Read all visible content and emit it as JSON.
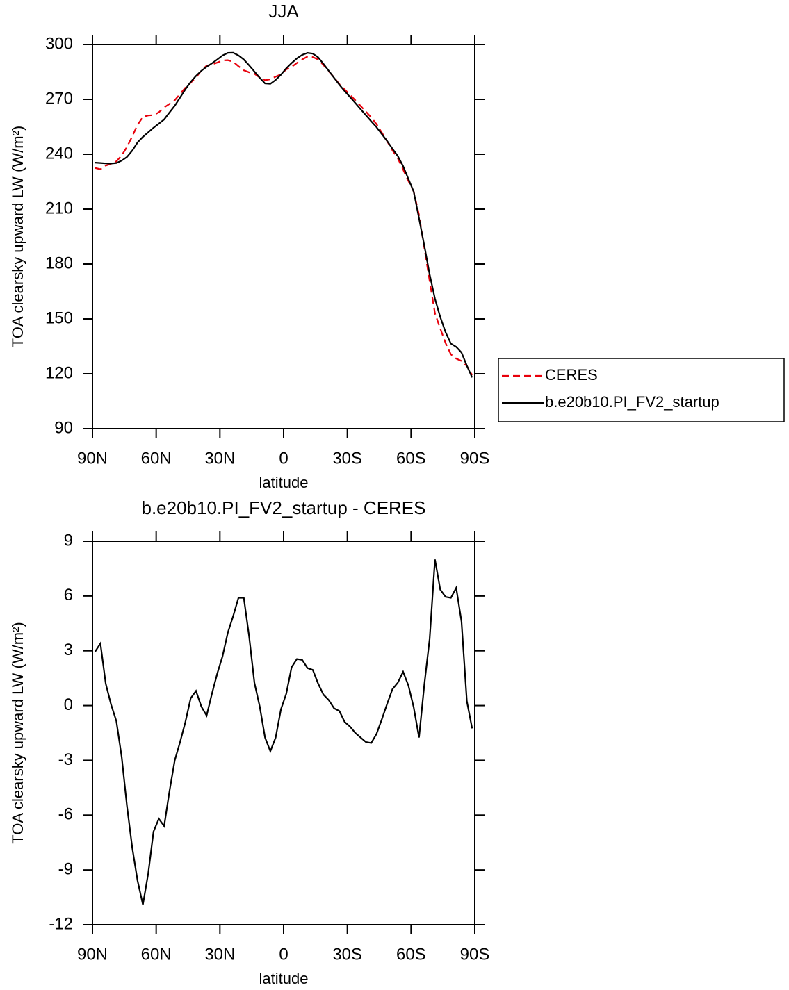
{
  "chart_data": [
    {
      "type": "line",
      "title": "JJA",
      "xlabel": "latitude",
      "ylabel": "TOA clearsky upward LW (W/m²)",
      "x": [
        88.75,
        86.25,
        83.75,
        81.25,
        78.75,
        76.25,
        73.75,
        71.25,
        68.75,
        66.25,
        63.75,
        61.25,
        58.75,
        56.25,
        53.75,
        51.25,
        48.75,
        46.25,
        43.75,
        41.25,
        38.75,
        36.25,
        33.75,
        31.25,
        28.75,
        26.25,
        23.75,
        21.25,
        18.75,
        16.25,
        13.75,
        11.25,
        8.75,
        6.25,
        3.75,
        1.25,
        -1.25,
        -3.75,
        -6.25,
        -8.75,
        -11.25,
        -13.75,
        -16.25,
        -18.75,
        -21.25,
        -23.75,
        -26.25,
        -28.75,
        -31.25,
        -33.75,
        -36.25,
        -38.75,
        -41.25,
        -43.75,
        -46.25,
        -48.75,
        -51.25,
        -53.75,
        -56.25,
        -58.75,
        -61.25,
        -63.75,
        -66.25,
        -68.75,
        -71.25,
        -73.75,
        -76.25,
        -78.75,
        -81.25,
        -83.75,
        -86.25,
        -88.75
      ],
      "series": [
        {
          "name": "CERES",
          "color": "#e8000b",
          "linestyle": "dashed",
          "values": [
            232.5,
            231.8,
            233.8,
            234.8,
            236.1,
            239.3,
            244.0,
            249.8,
            256.1,
            260.4,
            261.2,
            261.4,
            262.9,
            265.6,
            267.5,
            269.5,
            273.0,
            276.4,
            279.1,
            282.0,
            285.7,
            288.4,
            289.1,
            290.1,
            291.3,
            291.4,
            290.6,
            288.1,
            285.9,
            284.8,
            284.0,
            281.9,
            280.5,
            281.0,
            282.4,
            283.7,
            286.4,
            287.7,
            289.9,
            291.8,
            293.4,
            293.1,
            291.8,
            288.8,
            285.3,
            282.0,
            278.3,
            275.4,
            272.5,
            269.5,
            266.4,
            263.3,
            260.1,
            256.4,
            251.8,
            247.1,
            242.1,
            237.8,
            231.7,
            225.4,
            219.6,
            206.8,
            188.9,
            170.7,
            153.0,
            144.7,
            136.8,
            130.6,
            128.3,
            127.0,
            124.3,
            119.3
          ]
        },
        {
          "name": "b.e20b10.PI_FV2_startup",
          "color": "#000000",
          "linestyle": "solid",
          "values": [
            235.4,
            235.2,
            235.0,
            234.9,
            235.2,
            236.5,
            238.5,
            242.0,
            246.5,
            249.5,
            252.0,
            254.5,
            256.7,
            259.0,
            262.8,
            266.5,
            271.0,
            275.5,
            279.5,
            282.8,
            285.6,
            287.8,
            289.7,
            291.8,
            294.0,
            295.4,
            295.5,
            294.0,
            291.8,
            288.6,
            285.2,
            281.8,
            278.7,
            278.5,
            280.6,
            283.5,
            287.0,
            289.8,
            292.4,
            294.3,
            295.4,
            295.0,
            293.0,
            289.4,
            285.6,
            281.8,
            278.0,
            274.5,
            271.3,
            268.0,
            264.6,
            261.3,
            258.0,
            254.8,
            251.0,
            247.2,
            243.0,
            239.0,
            233.5,
            226.5,
            219.5,
            205.0,
            190.0,
            174.3,
            161.0,
            151.0,
            142.7,
            136.5,
            134.7,
            131.6,
            124.5,
            118.0
          ]
        }
      ],
      "xlim": [
        90,
        -90
      ],
      "xticks": [
        {
          "value": 90,
          "label": "90N"
        },
        {
          "value": 60,
          "label": "60N"
        },
        {
          "value": 30,
          "label": "30N"
        },
        0,
        {
          "value": -30,
          "label": "30S"
        },
        {
          "value": -60,
          "label": "60S"
        },
        {
          "value": -90,
          "label": "90S"
        }
      ],
      "ylim": [
        90,
        300
      ],
      "yticks": [
        90,
        120,
        150,
        180,
        210,
        240,
        270,
        300
      ],
      "legend": "right"
    },
    {
      "type": "line",
      "title": "b.e20b10.PI_FV2_startup - CERES",
      "xlabel": "latitude",
      "ylabel": "TOA clearsky upward LW (W/m²)",
      "x": [
        88.75,
        86.25,
        83.75,
        81.25,
        78.75,
        76.25,
        73.75,
        71.25,
        68.75,
        66.25,
        63.75,
        61.25,
        58.75,
        56.25,
        53.75,
        51.25,
        48.75,
        46.25,
        43.75,
        41.25,
        38.75,
        36.25,
        33.75,
        31.25,
        28.75,
        26.25,
        23.75,
        21.25,
        18.75,
        16.25,
        13.75,
        11.25,
        8.75,
        6.25,
        3.75,
        1.25,
        -1.25,
        -3.75,
        -6.25,
        -8.75,
        -11.25,
        -13.75,
        -16.25,
        -18.75,
        -21.25,
        -23.75,
        -26.25,
        -28.75,
        -31.25,
        -33.75,
        -36.25,
        -38.75,
        -41.25,
        -43.75,
        -46.25,
        -48.75,
        -51.25,
        -53.75,
        -56.25,
        -58.75,
        -61.25,
        -63.75,
        -66.25,
        -68.75,
        -71.25,
        -73.75,
        -76.25,
        -78.75,
        -81.25,
        -83.75,
        -86.25,
        -88.75
      ],
      "series": [
        {
          "color": "#000000",
          "linestyle": "solid",
          "values": [
            2.95,
            3.4,
            1.2,
            0.06,
            -0.85,
            -2.8,
            -5.5,
            -7.8,
            -9.6,
            -10.9,
            -9.2,
            -6.9,
            -6.2,
            -6.6,
            -4.7,
            -3.0,
            -2.0,
            -0.9,
            0.4,
            0.8,
            -0.05,
            -0.55,
            0.65,
            1.75,
            2.7,
            4.0,
            4.9,
            5.9,
            5.9,
            3.8,
            1.25,
            -0.05,
            -1.75,
            -2.5,
            -1.75,
            -0.2,
            0.65,
            2.1,
            2.55,
            2.5,
            2.05,
            1.95,
            1.2,
            0.6,
            0.3,
            -0.15,
            -0.3,
            -0.9,
            -1.15,
            -1.5,
            -1.75,
            -2.0,
            -2.05,
            -1.55,
            -0.75,
            0.1,
            0.9,
            1.25,
            1.85,
            1.1,
            -0.1,
            -1.75,
            1.15,
            3.65,
            8.0,
            6.35,
            5.95,
            5.9,
            6.45,
            4.6,
            0.25,
            -1.25
          ]
        }
      ],
      "xlim": [
        90,
        -90
      ],
      "xticks": [
        {
          "value": 90,
          "label": "90N"
        },
        {
          "value": 60,
          "label": "60N"
        },
        {
          "value": 30,
          "label": "30N"
        },
        0,
        {
          "value": -30,
          "label": "30S"
        },
        {
          "value": -60,
          "label": "60S"
        },
        {
          "value": -90,
          "label": "90S"
        }
      ],
      "ylim": [
        -12,
        9
      ],
      "yticks": [
        -12,
        -9,
        -6,
        -3,
        0,
        3,
        6,
        9
      ]
    }
  ]
}
